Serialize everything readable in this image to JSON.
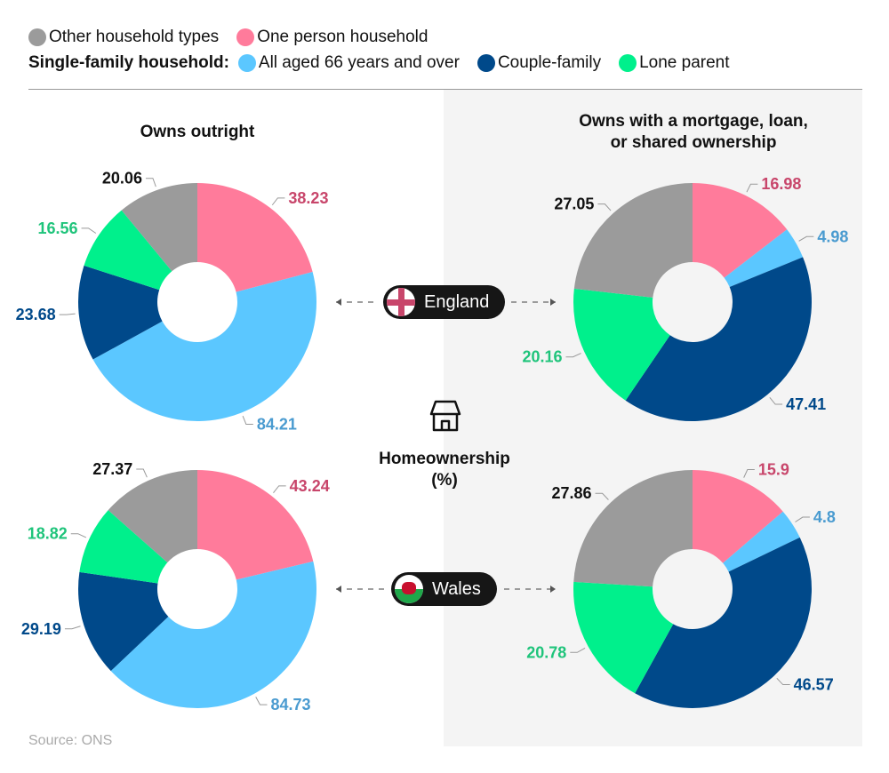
{
  "legend": {
    "row1": [
      {
        "label": "Other household types",
        "color": "#9b9b9b"
      },
      {
        "label": "One person household",
        "color": "#ff7b9b"
      }
    ],
    "group_label": "Single-family household:",
    "row2": [
      {
        "label": "All aged 66 years and over",
        "color": "#5bc7ff"
      },
      {
        "label": "Couple-family",
        "color": "#00498a"
      },
      {
        "label": "Lone parent",
        "color": "#00f08c"
      }
    ]
  },
  "center": {
    "title_line1": "Homeownership",
    "title_line2": "(%)",
    "icon": "house-icon",
    "regions": [
      "England",
      "Wales"
    ]
  },
  "source": "Source: ONS",
  "chart_data": [
    {
      "type": "pie",
      "title": "Owns outright",
      "region": "England",
      "categories": [
        "One person household",
        "All aged 66 years and over",
        "Couple-family",
        "Lone parent",
        "Other household types"
      ],
      "values": [
        38.23,
        84.21,
        23.68,
        16.56,
        20.06
      ]
    },
    {
      "type": "pie",
      "title": "Owns with a mortgage, loan, or shared ownership",
      "title_line1": "Owns with a mortgage, loan,",
      "title_line2": "or shared ownership",
      "region": "England",
      "categories": [
        "One person household",
        "All aged 66 years and over",
        "Couple-family",
        "Lone parent",
        "Other household types"
      ],
      "values": [
        16.98,
        4.98,
        47.41,
        20.16,
        27.05
      ]
    },
    {
      "type": "pie",
      "title": "Owns outright",
      "region": "Wales",
      "categories": [
        "One person household",
        "All aged 66 years and over",
        "Couple-family",
        "Lone parent",
        "Other household types"
      ],
      "values": [
        43.24,
        84.73,
        29.19,
        18.82,
        27.37
      ]
    },
    {
      "type": "pie",
      "title": "Owns with a mortgage, loan, or shared ownership",
      "region": "Wales",
      "categories": [
        "One person household",
        "All aged 66 years and over",
        "Couple-family",
        "Lone parent",
        "Other household types"
      ],
      "values": [
        15.9,
        4.8,
        46.57,
        20.78,
        27.86
      ]
    }
  ],
  "colors": {
    "slices": [
      "#ff7b9b",
      "#5bc7ff",
      "#00498a",
      "#00f08c",
      "#9b9b9b"
    ],
    "labels": [
      "#c8466b",
      "#4a9bd0",
      "#00498a",
      "#1fc47b",
      "#111111"
    ]
  }
}
